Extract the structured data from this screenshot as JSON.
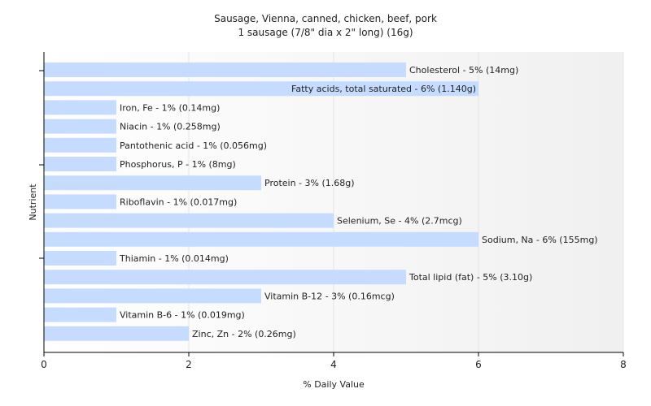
{
  "chart_data": {
    "type": "bar",
    "orientation": "horizontal",
    "title": "Sausage, Vienna, canned, chicken, beef, pork",
    "subtitle": "1 sausage (7/8\" dia x 2\" long) (16g)",
    "xlabel": "% Daily Value",
    "ylabel": "Nutrient",
    "xlim": [
      0,
      8
    ],
    "xticks": [
      "0",
      "2",
      "4",
      "6",
      "8"
    ],
    "grid": true,
    "bar_color": "#c6dcff",
    "categories": [
      "Cholesterol",
      "Fatty acids, total saturated",
      "Iron, Fe",
      "Niacin",
      "Pantothenic acid",
      "Phosphorus, P",
      "Protein",
      "Riboflavin",
      "Selenium, Se",
      "Sodium, Na",
      "Thiamin",
      "Total lipid (fat)",
      "Vitamin B-12",
      "Vitamin B-6",
      "Zinc, Zn"
    ],
    "values": [
      5,
      6,
      1,
      1,
      1,
      1,
      3,
      1,
      4,
      6,
      1,
      5,
      3,
      1,
      2
    ],
    "labels": [
      "Cholesterol - 5% (14mg)",
      "Fatty acids, total saturated - 6% (1.140g)",
      "Iron, Fe - 1% (0.14mg)",
      "Niacin - 1% (0.258mg)",
      "Pantothenic acid - 1% (0.056mg)",
      "Phosphorus, P - 1% (8mg)",
      "Protein - 3% (1.68g)",
      "Riboflavin - 1% (0.017mg)",
      "Selenium, Se - 4% (2.7mcg)",
      "Sodium, Na - 6% (155mg)",
      "Thiamin - 1% (0.014mg)",
      "Total lipid (fat) - 5% (3.10g)",
      "Vitamin B-12 - 3% (0.16mcg)",
      "Vitamin B-6 - 1% (0.019mg)",
      "Zinc, Zn - 2% (0.26mg)"
    ]
  }
}
